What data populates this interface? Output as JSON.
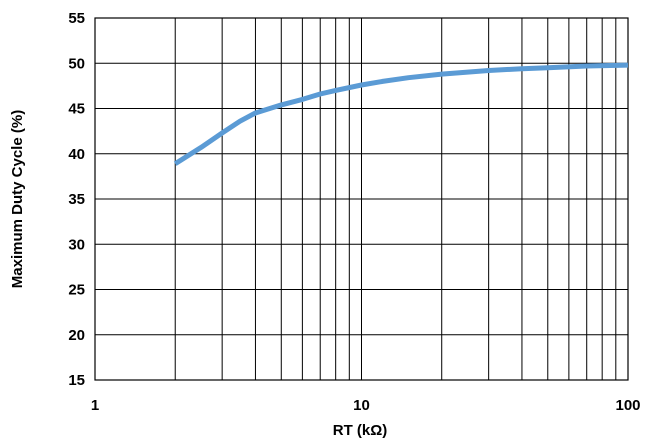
{
  "chart_data": {
    "type": "line",
    "title": "",
    "xlabel": "RT (kΩ)",
    "ylabel": "Maximum Duty Cycle (%)",
    "x_scale": "log",
    "xlim": [
      1,
      100
    ],
    "ylim": [
      15,
      55
    ],
    "x_ticks": [
      "1",
      "10",
      "100"
    ],
    "y_ticks": [
      "15",
      "20",
      "25",
      "30",
      "35",
      "40",
      "45",
      "50",
      "55"
    ],
    "grid": true,
    "legend": "none",
    "series": [
      {
        "color": "#5B9BD5",
        "x": [
          2,
          2.5,
          3,
          3.5,
          4,
          5,
          6,
          7,
          8,
          10,
          12,
          15,
          20,
          30,
          40,
          50,
          70,
          100
        ],
        "y": [
          38.9,
          40.7,
          42.3,
          43.6,
          44.5,
          45.4,
          46.0,
          46.6,
          47.0,
          47.6,
          48.0,
          48.4,
          48.8,
          49.2,
          49.4,
          49.5,
          49.7,
          49.8
        ]
      }
    ]
  }
}
